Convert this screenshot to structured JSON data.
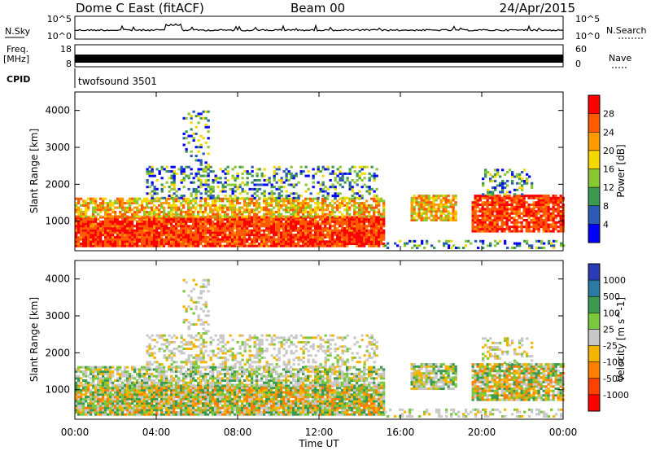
{
  "header": {
    "station": "Dome C East (fitACF)",
    "beam": "Beam 00",
    "date": "24/Apr/2015"
  },
  "noise_panel": {
    "left_label": "N.Sky",
    "left_ticks": [
      "10^5",
      "10^0"
    ],
    "right_ticks": [
      "10^5",
      "10^0"
    ],
    "right_label": "N.Search"
  },
  "freq_panel": {
    "left_label": "Freq.",
    "left_unit": "[MHz]",
    "left_ticks": [
      "18",
      "8"
    ],
    "right_ticks": [
      "60",
      "0"
    ],
    "right_label": "Nave"
  },
  "cpid_panel": {
    "label": "CPID",
    "program": "twofsound 3501"
  },
  "chart_data": [
    {
      "type": "heatmap",
      "name": "power",
      "ylabel": "Slant Range [km]",
      "yticks": [
        "4000",
        "3000",
        "2000",
        "1000"
      ],
      "ylim": [
        200,
        4500
      ],
      "xticks": [
        "00:00",
        "04:00",
        "08:00",
        "12:00",
        "16:00",
        "20:00",
        "00:00"
      ],
      "xlim": [
        0,
        24
      ],
      "colorbar": {
        "label": "Power [dB]",
        "ticks": [
          "28",
          "24",
          "20",
          "16",
          "12",
          "8",
          "4"
        ],
        "colors": [
          "#ff0000",
          "#ff5a00",
          "#ff9a00",
          "#f5d800",
          "#8ac832",
          "#3c9a50",
          "#2a5ab4",
          "#0000ff"
        ]
      }
    },
    {
      "type": "heatmap",
      "name": "velocity",
      "ylabel": "Slant Range [km]",
      "yticks": [
        "4000",
        "3000",
        "2000",
        "1000"
      ],
      "ylim": [
        200,
        4500
      ],
      "xticks": [
        "00:00",
        "04:00",
        "08:00",
        "12:00",
        "16:00",
        "20:00",
        "00:00"
      ],
      "xlim": [
        0,
        24
      ],
      "xlabel": "Time UT",
      "colorbar": {
        "label": "Velocity [m s^-1]",
        "ticks": [
          "1000",
          "500",
          "100",
          "25",
          "-25",
          "-100",
          "-500",
          "-1000"
        ],
        "colors": [
          "#2a3cb4",
          "#2a7aa4",
          "#3c9a50",
          "#7ac83c",
          "#c8c8c8",
          "#f5b400",
          "#ff8000",
          "#ff4000",
          "#ff0000"
        ]
      }
    }
  ]
}
